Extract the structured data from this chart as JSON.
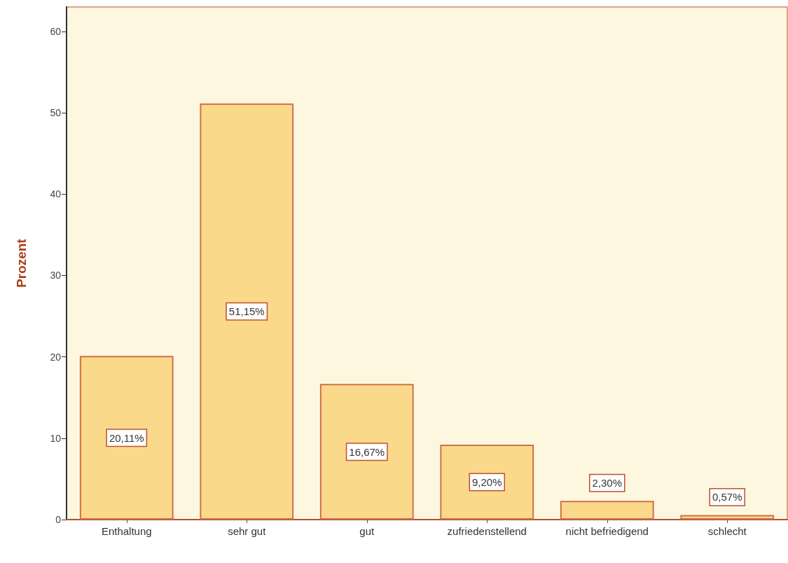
{
  "chart_data": {
    "type": "bar",
    "ylabel": "Prozent",
    "categories": [
      "Enthaltung",
      "sehr gut",
      "gut",
      "zufriedenstellend",
      "nicht befriedigend",
      "schlecht"
    ],
    "values": [
      20.11,
      51.15,
      16.67,
      9.2,
      2.3,
      0.57
    ],
    "value_labels": [
      "20,11%",
      "51,15%",
      "16,67%",
      "9,20%",
      "2,30%",
      "0,57%"
    ],
    "color": "#fbd98a",
    "ylim": [
      0,
      63
    ],
    "yticks": [
      0,
      10,
      20,
      30,
      40,
      50,
      60
    ],
    "grid": false
  }
}
